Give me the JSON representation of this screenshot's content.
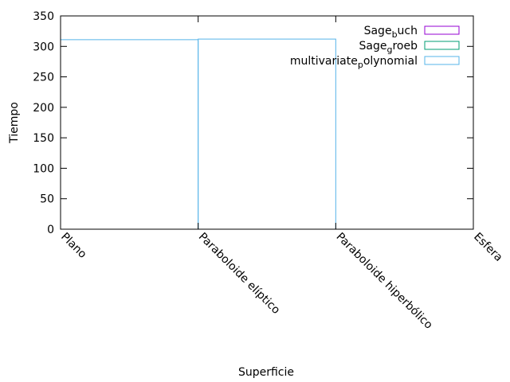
{
  "chart_data": {
    "type": "bar",
    "xlabel": "Superficie",
    "ylabel": "Tiempo",
    "categories": [
      "Plano",
      "Paraboloide elíptico",
      "Paraboloide hiperbólico",
      "Esfera"
    ],
    "ylim": [
      0,
      350
    ],
    "yticks": [
      0,
      50,
      100,
      150,
      200,
      250,
      300,
      350
    ],
    "grid": false,
    "legend_position": "top-right",
    "series": [
      {
        "name": "Sagebuch",
        "label_base": "Sage",
        "label_sub": "b",
        "label_rest": "uch",
        "color": "#9400d3",
        "values": [
          0,
          0,
          0,
          0
        ]
      },
      {
        "name": "Sagegroeb",
        "label_base": "Sage",
        "label_sub": "g",
        "label_rest": "roeb",
        "color": "#009e73",
        "values": [
          0,
          0,
          0,
          0
        ]
      },
      {
        "name": "multivariatepolynomial",
        "label_base": "multivariate",
        "label_sub": "p",
        "label_rest": "olynomial",
        "color": "#56b4e9",
        "values": [
          340,
          311,
          312,
          0
        ]
      }
    ]
  }
}
